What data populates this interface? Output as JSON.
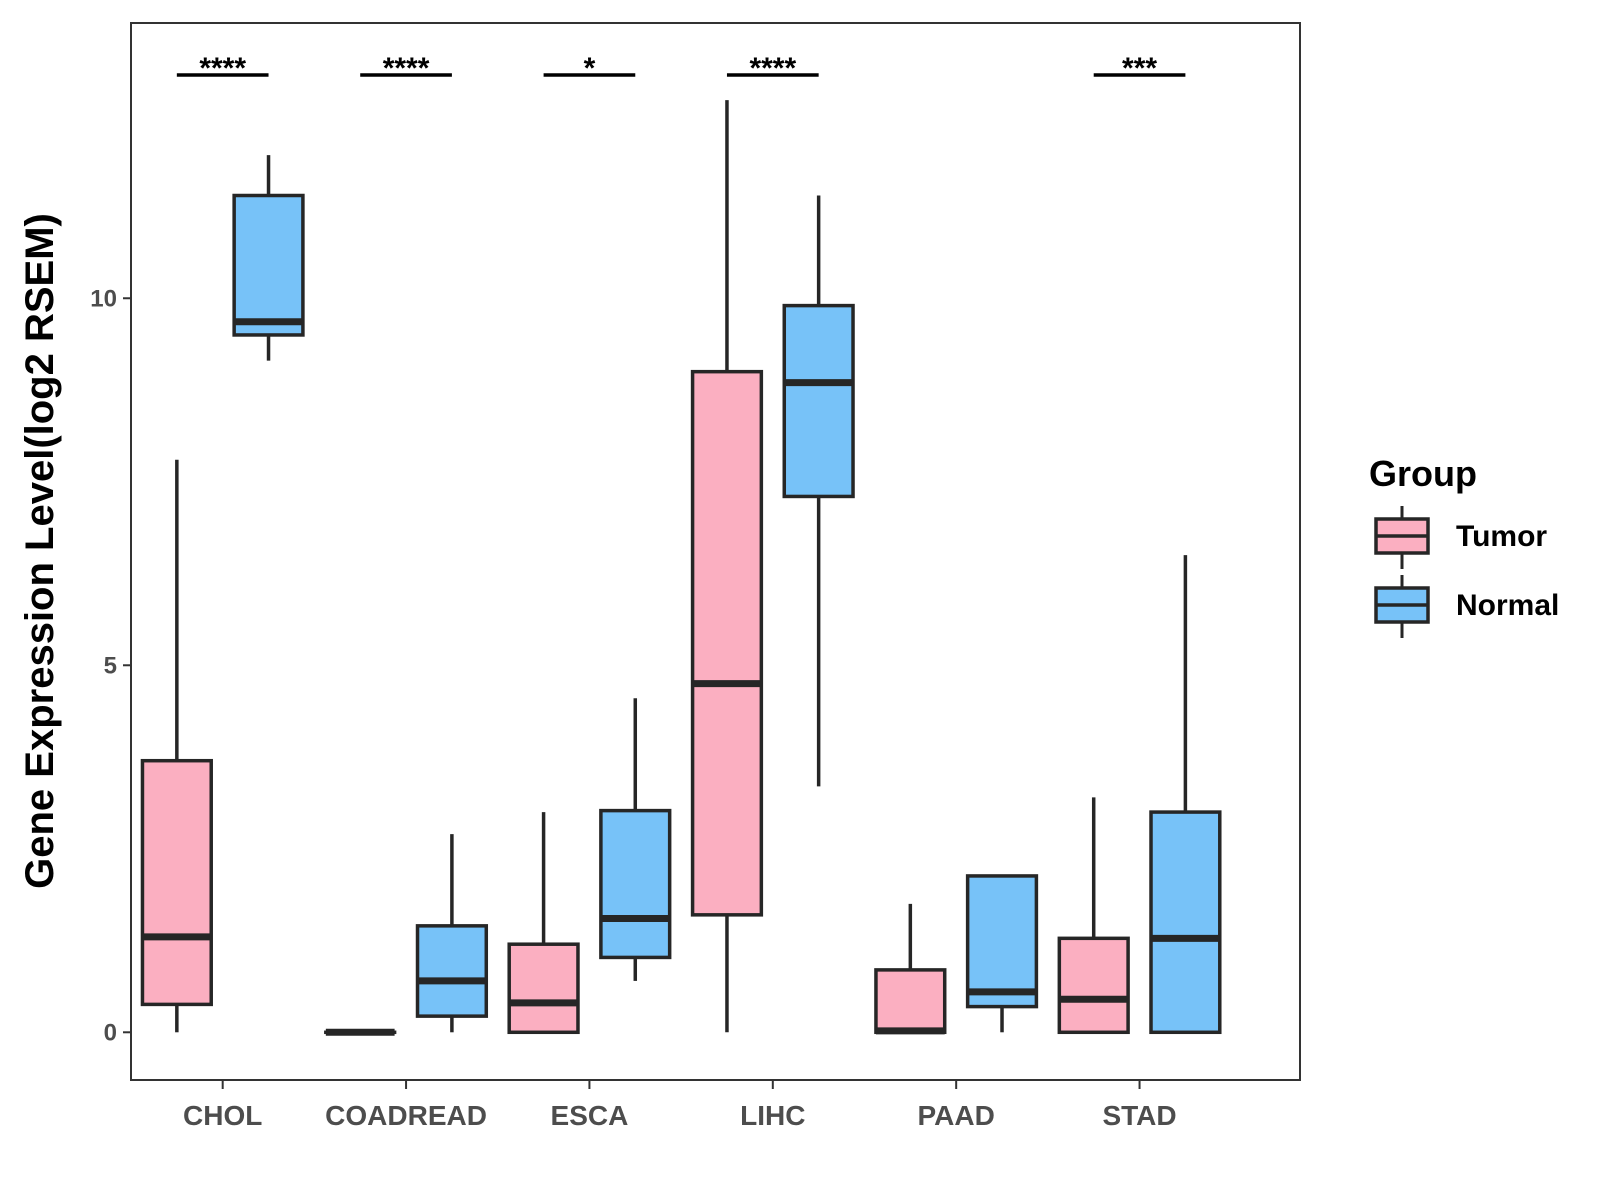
{
  "chart_data": {
    "type": "boxplot",
    "title": "",
    "xlabel": "",
    "ylabel": "Gene Expression Level(log2 RSEM)",
    "ylim": [
      -0.65,
      13.75
    ],
    "yticks": [
      0,
      5,
      10
    ],
    "categories": [
      "CHOL",
      "COADREAD",
      "ESCA",
      "LIHC",
      "PAAD",
      "STAD"
    ],
    "legend": {
      "title": "Group",
      "position": "right",
      "entries": [
        {
          "name": "Tumor",
          "color": "#FBAFC1"
        },
        {
          "name": "Normal",
          "color": "#77C2F8"
        }
      ]
    },
    "series": [
      {
        "name": "Tumor",
        "color": "#FBAFC1",
        "boxes": [
          {
            "category": "CHOL",
            "min": 0.0,
            "q1": 0.38,
            "median": 1.3,
            "q3": 3.7,
            "max": 7.8
          },
          {
            "category": "COADREAD",
            "min": 0.0,
            "q1": 0.0,
            "median": 0.0,
            "q3": 0.0,
            "max": 0.0
          },
          {
            "category": "ESCA",
            "min": 0.0,
            "q1": 0.0,
            "median": 0.4,
            "q3": 1.2,
            "max": 3.0
          },
          {
            "category": "LIHC",
            "min": 0.0,
            "q1": 1.6,
            "median": 4.75,
            "q3": 9.0,
            "max": 12.7
          },
          {
            "category": "PAAD",
            "min": 0.0,
            "q1": 0.0,
            "median": 0.02,
            "q3": 0.85,
            "max": 1.75
          },
          {
            "category": "STAD",
            "min": 0.0,
            "q1": 0.0,
            "median": 0.45,
            "q3": 1.28,
            "max": 3.2
          }
        ]
      },
      {
        "name": "Normal",
        "color": "#77C2F8",
        "boxes": [
          {
            "category": "CHOL",
            "min": 9.15,
            "q1": 9.5,
            "median": 9.68,
            "q3": 11.4,
            "max": 11.95
          },
          {
            "category": "COADREAD",
            "min": 0.0,
            "q1": 0.22,
            "median": 0.7,
            "q3": 1.45,
            "max": 2.7
          },
          {
            "category": "ESCA",
            "min": 0.7,
            "q1": 1.02,
            "median": 1.55,
            "q3": 3.02,
            "max": 4.55
          },
          {
            "category": "LIHC",
            "min": 3.35,
            "q1": 7.3,
            "median": 8.85,
            "q3": 9.9,
            "max": 11.4
          },
          {
            "category": "PAAD",
            "min": 0.0,
            "q1": 0.35,
            "median": 0.55,
            "q3": 2.13,
            "max": 2.13
          },
          {
            "category": "STAD",
            "min": 0.0,
            "q1": 0.0,
            "median": 1.28,
            "q3": 3.0,
            "max": 6.5
          }
        ]
      }
    ],
    "significance": [
      {
        "category": "CHOL",
        "label": "****"
      },
      {
        "category": "COADREAD",
        "label": "****"
      },
      {
        "category": "ESCA",
        "label": "*"
      },
      {
        "category": "LIHC",
        "label": "****"
      },
      {
        "category": "PAAD",
        "label": ""
      },
      {
        "category": "STAD",
        "label": "***"
      }
    ]
  }
}
